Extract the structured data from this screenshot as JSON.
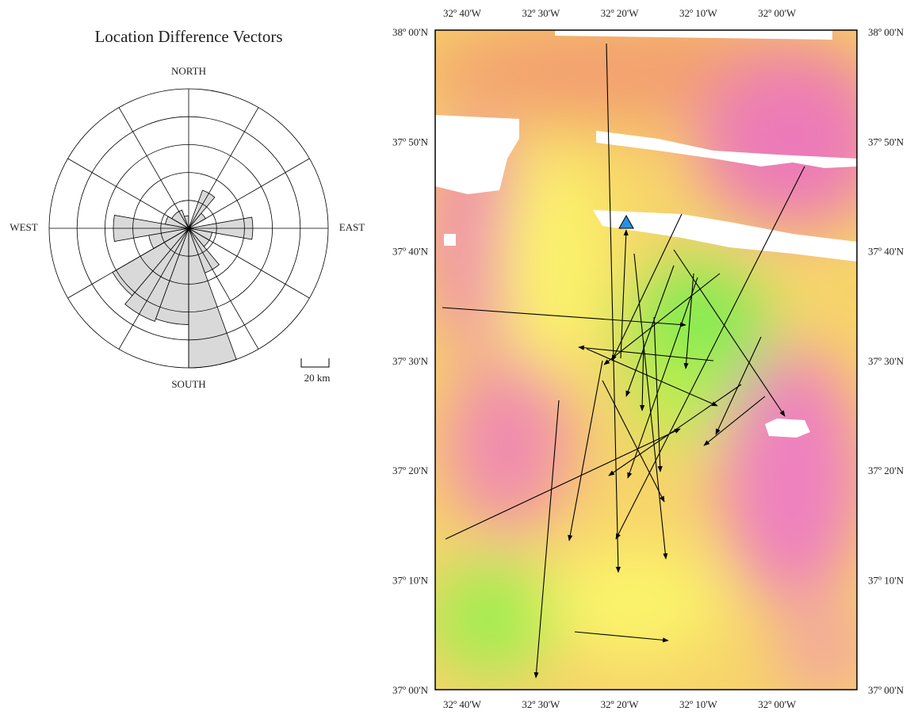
{
  "rose": {
    "title": "Location Difference Vectors",
    "north": "NORTH",
    "south": "SOUTH",
    "east": "EAST",
    "west": "WEST",
    "scale_label": "20 km",
    "rings": [
      20,
      40,
      60,
      80,
      100
    ],
    "petals": [
      {
        "from": 20,
        "to": 40,
        "length": 29
      },
      {
        "from": 40,
        "to": 60,
        "length": 14
      },
      {
        "from": 80,
        "to": 100,
        "length": 46
      },
      {
        "from": 100,
        "to": 120,
        "length": 17
      },
      {
        "from": 120,
        "to": 140,
        "length": 17
      },
      {
        "from": 140,
        "to": 160,
        "length": 34
      },
      {
        "from": 160,
        "to": 180,
        "length": 100
      },
      {
        "from": 180,
        "to": 200,
        "length": 69
      },
      {
        "from": 200,
        "to": 220,
        "length": 71
      },
      {
        "from": 220,
        "to": 240,
        "length": 63
      },
      {
        "from": 240,
        "to": 260,
        "length": 29
      },
      {
        "from": 260,
        "to": 280,
        "length": 54
      },
      {
        "from": 280,
        "to": 300,
        "length": 17
      },
      {
        "from": 300,
        "to": 340,
        "length": 14
      },
      {
        "from": 340,
        "to": 360,
        "length": 9
      }
    ]
  },
  "map": {
    "lon_labels": [
      "32º 40'W",
      "32º 30'W",
      "32º 20'W",
      "32º 10'W",
      "32º 00'W"
    ],
    "lat_labels": [
      "38º 00'N",
      "37º 50'N",
      "37º 40'N",
      "37º 30'N",
      "37º 20'N",
      "37º 10'N",
      "37º 00'N"
    ]
  }
}
